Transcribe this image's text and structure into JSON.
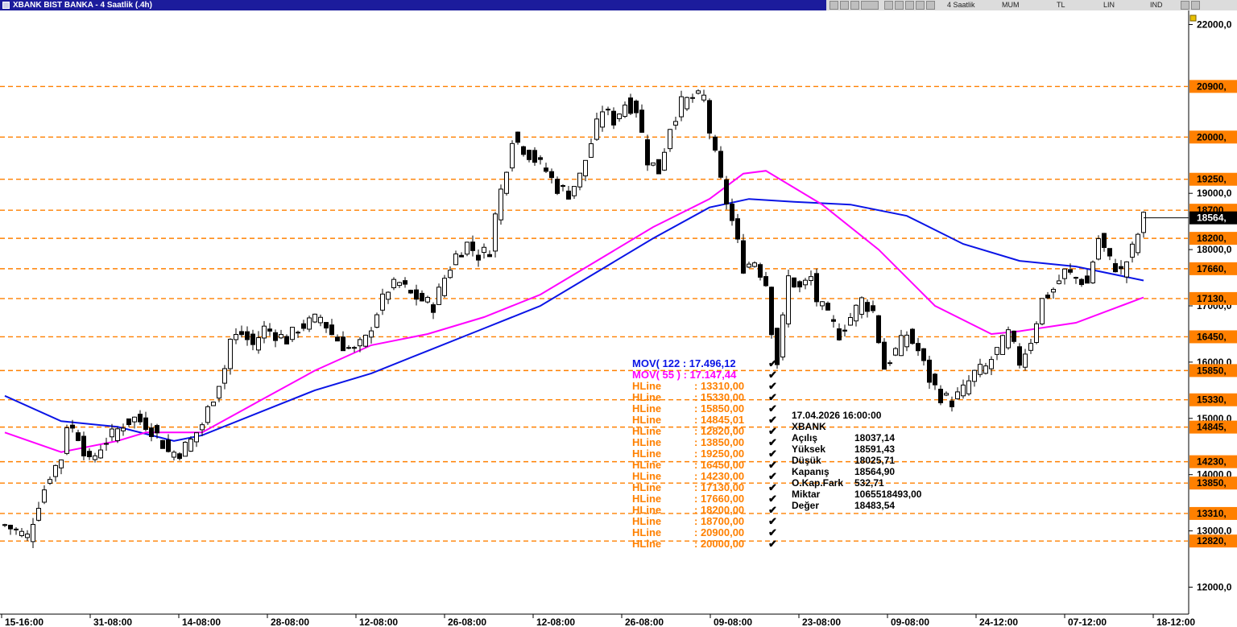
{
  "window": {
    "title": "XBANK BIST BANKA - 4 Saatlik (.4h)"
  },
  "toolbar": {
    "period": "4 Saatlik",
    "style": "MUM",
    "currency": "TL",
    "scale": "LIN",
    "mode": "IND"
  },
  "colors": {
    "ma122": "#0a14e6",
    "ma55": "#ff00ff",
    "hline": "#ff8000",
    "candle_up": "#ffffff",
    "candle_down": "#000000"
  },
  "price_axis": {
    "ticks": [
      "22000,0",
      "19000,0",
      "18000,0",
      "17000,0",
      "16000,0",
      "15000,0",
      "14000,0",
      "13000,0",
      "12000,0"
    ],
    "last_price": "18564,"
  },
  "time_axis": {
    "labels": [
      "15-16:00",
      "31-08:00",
      "14-08:00",
      "28-08:00",
      "12-08:00",
      "26-08:00",
      "12-08:00",
      "26-08:00",
      "09-08:00",
      "23-08:00",
      "09-08:00",
      "24-12:00",
      "07-12:00",
      "18-12:00"
    ]
  },
  "chart_data": {
    "type": "candlestick",
    "title": "XBANK BIST BANKA - 4 Saatlik (.4h)",
    "y_axis": {
      "scale": "linear",
      "ylim": [
        11600,
        22300
      ],
      "ticks": [
        12000,
        13000,
        14000,
        15000,
        16000,
        17000,
        18000,
        19000,
        22000
      ]
    },
    "hlines": [
      20900,
      20000,
      19250,
      18700,
      18200,
      17660,
      17130,
      16450,
      15850,
      15330,
      14845,
      14230,
      13850,
      13310,
      12820
    ],
    "hline_labels": [
      "20900,",
      "20000,",
      "19250,",
      "18700,",
      "18200,",
      "17660,",
      "17130,",
      "16450,",
      "15850,",
      "15330,",
      "14845,",
      "14230,",
      "13850,",
      "13310,",
      "12820,"
    ],
    "price_path": [
      [
        0,
        13100
      ],
      [
        2,
        13000
      ],
      [
        4,
        12900
      ],
      [
        6,
        13500
      ],
      [
        8,
        14000
      ],
      [
        10,
        14300
      ],
      [
        11,
        14900
      ],
      [
        13,
        14700
      ],
      [
        15,
        14200
      ],
      [
        17,
        14500
      ],
      [
        19,
        14700
      ],
      [
        21,
        14900
      ],
      [
        23,
        15000
      ],
      [
        25,
        14900
      ],
      [
        27,
        14700
      ],
      [
        29,
        14400
      ],
      [
        31,
        14400
      ],
      [
        33,
        14600
      ],
      [
        35,
        14900
      ],
      [
        37,
        15400
      ],
      [
        39,
        15900
      ],
      [
        40,
        16400
      ],
      [
        42,
        16500
      ],
      [
        44,
        16300
      ],
      [
        46,
        16600
      ],
      [
        48,
        16500
      ],
      [
        50,
        16400
      ],
      [
        52,
        16600
      ],
      [
        54,
        16700
      ],
      [
        56,
        16800
      ],
      [
        58,
        16500
      ],
      [
        60,
        16300
      ],
      [
        62,
        16200
      ],
      [
        64,
        16400
      ],
      [
        66,
        16900
      ],
      [
        68,
        17300
      ],
      [
        70,
        17400
      ],
      [
        72,
        17200
      ],
      [
        74,
        17100
      ],
      [
        76,
        17000
      ],
      [
        78,
        17500
      ],
      [
        80,
        17900
      ],
      [
        82,
        18100
      ],
      [
        84,
        17900
      ],
      [
        86,
        18000
      ],
      [
        87,
        18600
      ],
      [
        89,
        19500
      ],
      [
        90,
        20000
      ],
      [
        92,
        19800
      ],
      [
        94,
        19600
      ],
      [
        96,
        19400
      ],
      [
        98,
        19100
      ],
      [
        100,
        19000
      ],
      [
        102,
        19300
      ],
      [
        104,
        19900
      ],
      [
        106,
        20500
      ],
      [
        108,
        20300
      ],
      [
        110,
        20600
      ],
      [
        112,
        20500
      ],
      [
        114,
        19600
      ],
      [
        116,
        19400
      ],
      [
        118,
        20200
      ],
      [
        120,
        20600
      ],
      [
        122,
        20700
      ],
      [
        124,
        20700
      ],
      [
        125,
        20100
      ],
      [
        127,
        19200
      ],
      [
        129,
        18500
      ],
      [
        131,
        17700
      ],
      [
        133,
        17800
      ],
      [
        135,
        17400
      ],
      [
        136,
        16600
      ],
      [
        137,
        16000
      ],
      [
        139,
        17500
      ],
      [
        141,
        17300
      ],
      [
        143,
        17500
      ],
      [
        144,
        17100
      ],
      [
        146,
        16800
      ],
      [
        148,
        16500
      ],
      [
        150,
        16800
      ],
      [
        152,
        17100
      ],
      [
        154,
        16900
      ],
      [
        156,
        15900
      ],
      [
        158,
        16200
      ],
      [
        160,
        16500
      ],
      [
        162,
        16200
      ],
      [
        164,
        15700
      ],
      [
        166,
        15400
      ],
      [
        168,
        15300
      ],
      [
        170,
        15500
      ],
      [
        172,
        15800
      ],
      [
        174,
        15900
      ],
      [
        176,
        16200
      ],
      [
        178,
        16500
      ],
      [
        180,
        16000
      ],
      [
        182,
        16400
      ],
      [
        184,
        17100
      ],
      [
        186,
        17300
      ],
      [
        188,
        17600
      ],
      [
        190,
        17500
      ],
      [
        192,
        17400
      ],
      [
        194,
        18200
      ],
      [
        196,
        17800
      ],
      [
        198,
        17600
      ],
      [
        200,
        18000
      ],
      [
        202,
        18564
      ]
    ],
    "series": [
      {
        "name": "MOV( 122 : 17.496,12",
        "type": "line",
        "values": [
          [
            0,
            15400
          ],
          [
            10,
            14950
          ],
          [
            20,
            14850
          ],
          [
            30,
            14600
          ],
          [
            35,
            14700
          ],
          [
            45,
            15100
          ],
          [
            55,
            15500
          ],
          [
            65,
            15800
          ],
          [
            75,
            16200
          ],
          [
            85,
            16600
          ],
          [
            95,
            17000
          ],
          [
            105,
            17600
          ],
          [
            115,
            18200
          ],
          [
            125,
            18750
          ],
          [
            132,
            18900
          ],
          [
            140,
            18850
          ],
          [
            150,
            18800
          ],
          [
            160,
            18600
          ],
          [
            170,
            18100
          ],
          [
            180,
            17800
          ],
          [
            190,
            17700
          ],
          [
            202,
            17450
          ]
        ]
      },
      {
        "name": "MOV( 55 ) : 17.147,44",
        "type": "line",
        "values": [
          [
            0,
            14750
          ],
          [
            10,
            14400
          ],
          [
            20,
            14600
          ],
          [
            25,
            14750
          ],
          [
            35,
            14750
          ],
          [
            45,
            15300
          ],
          [
            55,
            15850
          ],
          [
            65,
            16300
          ],
          [
            75,
            16500
          ],
          [
            85,
            16800
          ],
          [
            95,
            17200
          ],
          [
            105,
            17800
          ],
          [
            115,
            18400
          ],
          [
            125,
            18900
          ],
          [
            131,
            19350
          ],
          [
            135,
            19400
          ],
          [
            145,
            18800
          ],
          [
            155,
            18000
          ],
          [
            165,
            17000
          ],
          [
            175,
            16500
          ],
          [
            180,
            16550
          ],
          [
            190,
            16700
          ],
          [
            202,
            17150
          ]
        ]
      }
    ],
    "legend": {
      "ma122": "MOV( 122 : 17.496,12",
      "ma55": "MOV( 55 ) : 17.147,44",
      "hlines": [
        {
          "name": "HLine",
          "value": ": 13310,00"
        },
        {
          "name": "HLine",
          "value": ": 15330,00"
        },
        {
          "name": "HLine",
          "value": ": 15850,00"
        },
        {
          "name": "HLine",
          "value": ": 14845,01"
        },
        {
          "name": "HLine",
          "value": ": 12820,00"
        },
        {
          "name": "HLine",
          "value": ": 13850,00"
        },
        {
          "name": "HLine",
          "value": ": 19250,00"
        },
        {
          "name": "HLine",
          "value": ": 16450,00"
        },
        {
          "name": "HLine",
          "value": ": 14230,00"
        },
        {
          "name": "HLine",
          "value": ": 17130,00"
        },
        {
          "name": "HLine",
          "value": ": 17660,00"
        },
        {
          "name": "HLine",
          "value": ": 18200,00"
        },
        {
          "name": "HLine",
          "value": ": 18700,00"
        },
        {
          "name": "HLine",
          "value": ": 20900,00"
        },
        {
          "name": "HLine",
          "value": ": 20000,00"
        }
      ]
    },
    "info_box": {
      "datetime": "17.04.2026  16:00:00",
      "symbol": "XBANK",
      "rows": [
        {
          "label": "Açılış",
          "value": "18037,14"
        },
        {
          "label": "Yüksek",
          "value": "18591,43"
        },
        {
          "label": "Düşük",
          "value": "18025,71"
        },
        {
          "label": "Kapanış",
          "value": "18564,90"
        },
        {
          "label": "O.Kap.Fark",
          "value": "532,71"
        },
        {
          "label": "Miktar",
          "value": "1065518493,00"
        },
        {
          "label": "Değer",
          "value": "18483,54"
        }
      ]
    }
  }
}
